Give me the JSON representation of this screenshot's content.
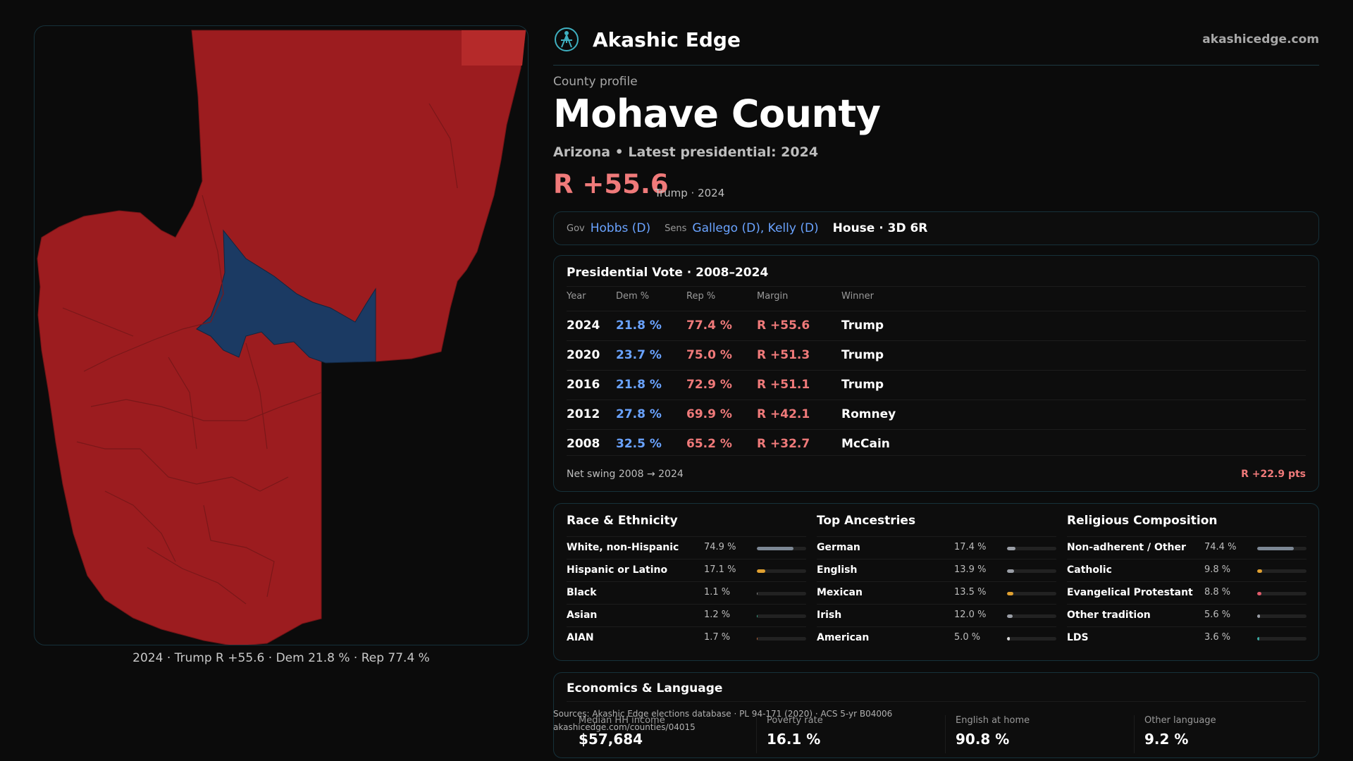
{
  "map": {
    "caption": "2024 · Trump R +55.6 · Dem 21.8 % · Rep 77.4 %",
    "colors": {
      "republican": "#9c1c1f",
      "republican_light": "#b52a2a",
      "democratic": "#1b3a63",
      "border": "#6f1416"
    }
  },
  "header": {
    "brand": "Akashic Edge",
    "url": "akashicedge.com",
    "logo_icon": "compass-figure-icon"
  },
  "profile": {
    "eyebrow": "County profile",
    "name": "Mohave County",
    "subtitle": "Arizona • Latest presidential: 2024",
    "margin": "R +55.6",
    "margin_note": "Trump · 2024"
  },
  "officials": {
    "gov_label": "Gov",
    "gov": "Hobbs (D)",
    "sens_label": "Sens",
    "sens": "Gallego (D), Kelly (D)",
    "house": "House · 3D 6R"
  },
  "presidential": {
    "title": "Presidential Vote · 2008–2024",
    "headers": {
      "year": "Year",
      "dem": "Dem %",
      "rep": "Rep %",
      "margin": "Margin",
      "winner": "Winner"
    },
    "rows": [
      {
        "year": "2024",
        "dem": "21.8 %",
        "rep": "77.4 %",
        "margin": "R +55.6",
        "winner": "Trump"
      },
      {
        "year": "2020",
        "dem": "23.7 %",
        "rep": "75.0 %",
        "margin": "R +51.3",
        "winner": "Trump"
      },
      {
        "year": "2016",
        "dem": "21.8 %",
        "rep": "72.9 %",
        "margin": "R +51.1",
        "winner": "Trump"
      },
      {
        "year": "2012",
        "dem": "27.8 %",
        "rep": "69.9 %",
        "margin": "R +42.1",
        "winner": "Romney"
      },
      {
        "year": "2008",
        "dem": "32.5 %",
        "rep": "65.2 %",
        "margin": "R +32.7",
        "winner": "McCain"
      }
    ],
    "swing_label": "Net swing 2008 → 2024",
    "swing_value": "R +22.9 pts"
  },
  "demographics": [
    {
      "title": "Race & Ethnicity",
      "rows": [
        {
          "name": "White, non-Hispanic",
          "pct": "74.9 %",
          "value": 74.9,
          "color": "#7c8794"
        },
        {
          "name": "Hispanic or Latino",
          "pct": "17.1 %",
          "value": 17.1,
          "color": "#e0a030"
        },
        {
          "name": "Black",
          "pct": "1.1 %",
          "value": 1.1,
          "color": "#8a8a8a"
        },
        {
          "name": "Asian",
          "pct": "1.2 %",
          "value": 1.2,
          "color": "#3aa88a"
        },
        {
          "name": "AIAN",
          "pct": "1.7 %",
          "value": 1.7,
          "color": "#c0663a"
        }
      ]
    },
    {
      "title": "Top Ancestries",
      "rows": [
        {
          "name": "German",
          "pct": "17.4 %",
          "value": 17.4,
          "color": "#9a9ea6"
        },
        {
          "name": "English",
          "pct": "13.9 %",
          "value": 13.9,
          "color": "#9a9ea6"
        },
        {
          "name": "Mexican",
          "pct": "13.5 %",
          "value": 13.5,
          "color": "#e0a030"
        },
        {
          "name": "Irish",
          "pct": "12.0 %",
          "value": 12.0,
          "color": "#9a9ea6"
        },
        {
          "name": "American",
          "pct": "5.0 %",
          "value": 5.0,
          "color": "#d8d8d8"
        }
      ]
    },
    {
      "title": "Religious Composition",
      "rows": [
        {
          "name": "Non-adherent / Other",
          "pct": "74.4 %",
          "value": 74.4,
          "color": "#7c8794"
        },
        {
          "name": "Catholic",
          "pct": "9.8 %",
          "value": 9.8,
          "color": "#e0a030"
        },
        {
          "name": "Evangelical Protestant",
          "pct": "8.8 %",
          "value": 8.8,
          "color": "#e05a6a"
        },
        {
          "name": "Other tradition",
          "pct": "5.6 %",
          "value": 5.6,
          "color": "#9a9ea6"
        },
        {
          "name": "LDS",
          "pct": "3.6 %",
          "value": 3.6,
          "color": "#3aa8a0"
        }
      ]
    }
  ],
  "economics": {
    "title": "Economics & Language",
    "items": [
      {
        "label": "Median HH income",
        "value": "$57,684"
      },
      {
        "label": "Poverty rate",
        "value": "16.1 %"
      },
      {
        "label": "English at home",
        "value": "90.8 %"
      },
      {
        "label": "Other language",
        "value": "9.2 %"
      }
    ]
  },
  "sources": {
    "line1": "Sources: Akashic Edge elections database · PL 94-171 (2020) · ACS 5-yr B04006",
    "line2": "akashicedge.com/counties/04015"
  }
}
